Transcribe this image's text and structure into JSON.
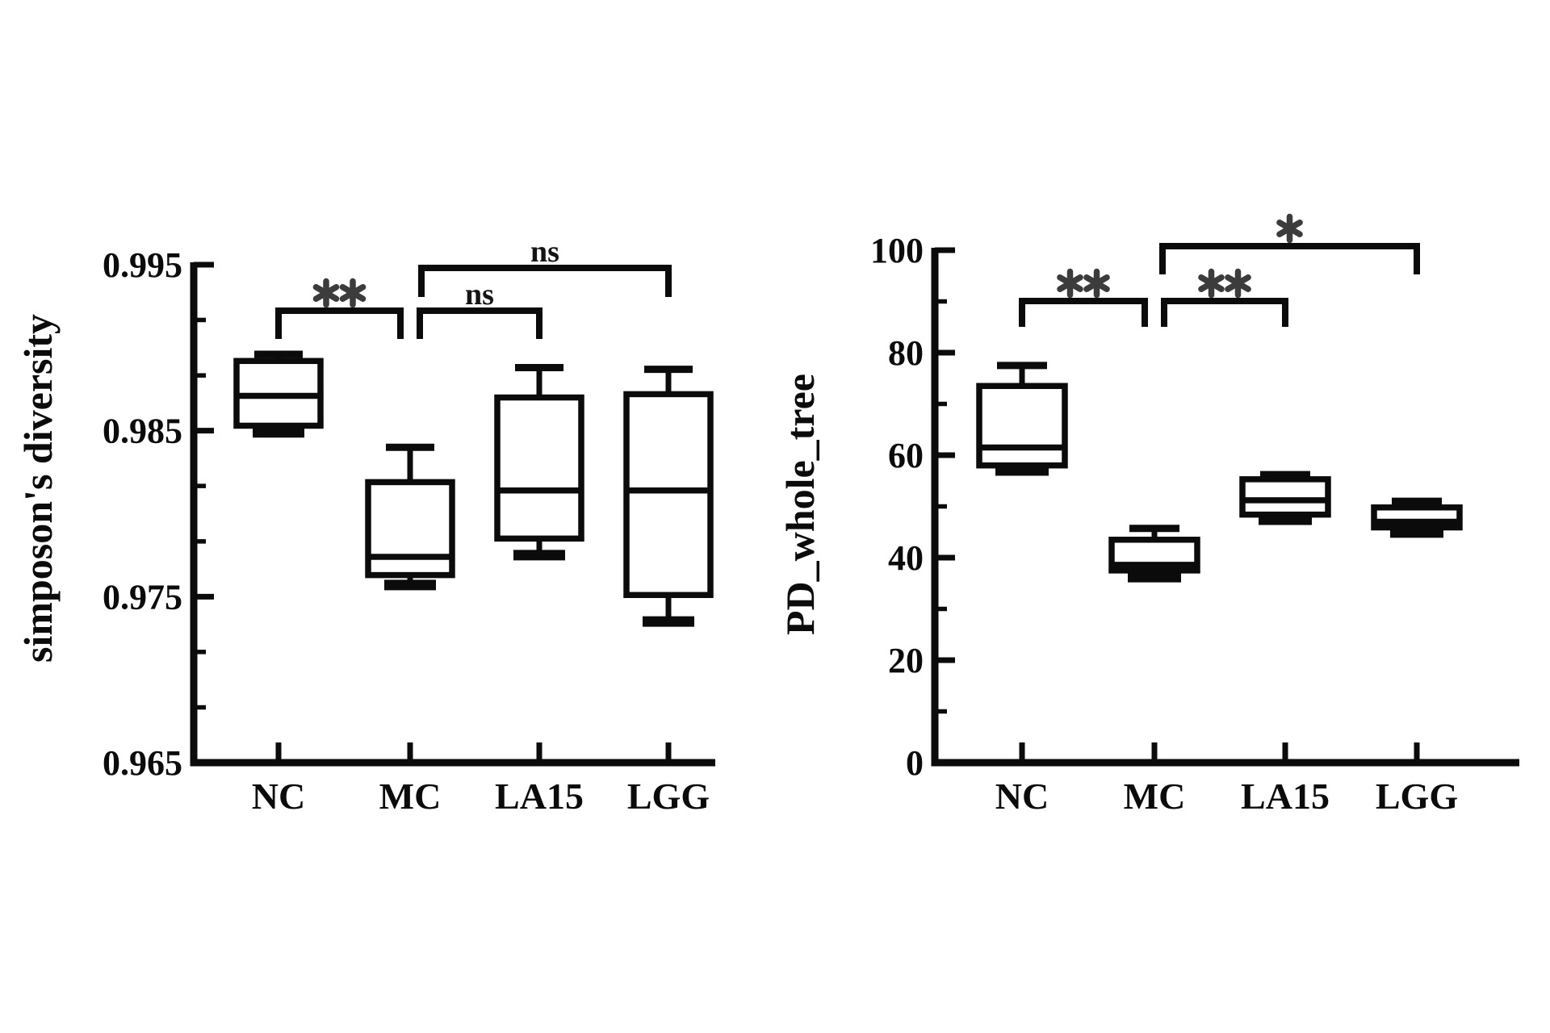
{
  "figure": {
    "background": "#ffffff",
    "ink_color": "#0b0b0b",
    "star_color": "#3c3c3c"
  },
  "chart_data": [
    {
      "type": "box",
      "title": "",
      "ylabel": "simposon's diversity",
      "xlabel": "",
      "categories": [
        "NC",
        "MC",
        "LA15",
        "LGG"
      ],
      "ylim": [
        0.965,
        0.995
      ],
      "grid": false,
      "yticks": [
        {
          "value": 0.965,
          "label": "0.965"
        },
        {
          "value": 0.975,
          "label": "0.975"
        },
        {
          "value": 0.985,
          "label": "0.985"
        },
        {
          "value": 0.995,
          "label": "0.995"
        }
      ],
      "yminor": [
        0.96833,
        0.97167,
        0.97833,
        0.98167,
        0.98833,
        0.99167
      ],
      "boxes": [
        {
          "category": "NC",
          "whisker_low": 0.9849,
          "q1": 0.9853,
          "median": 0.9871,
          "q3": 0.9892,
          "whisker_high": 0.9896
        },
        {
          "category": "MC",
          "whisker_low": 0.9757,
          "q1": 0.9763,
          "median": 0.9774,
          "q3": 0.9819,
          "whisker_high": 0.984
        },
        {
          "category": "LA15",
          "whisker_low": 0.9775,
          "q1": 0.9785,
          "median": 0.9814,
          "q3": 0.987,
          "whisker_high": 0.9888
        },
        {
          "category": "LGG",
          "whisker_low": 0.9735,
          "q1": 0.9751,
          "median": 0.9814,
          "q3": 0.9872,
          "whisker_high": 0.9887
        }
      ],
      "comparisons": [
        {
          "from": "NC",
          "to": "MC",
          "label": "**"
        },
        {
          "from": "MC",
          "to": "LA15",
          "label": "ns"
        },
        {
          "from": "MC",
          "to": "LGG",
          "label": "ns"
        }
      ]
    },
    {
      "type": "box",
      "title": "",
      "ylabel": "PD_whole_tree",
      "xlabel": "",
      "categories": [
        "NC",
        "MC",
        "LA15",
        "LGG"
      ],
      "ylim": [
        0,
        100
      ],
      "grid": false,
      "yticks": [
        {
          "value": 0,
          "label": "0"
        },
        {
          "value": 20,
          "label": "20"
        },
        {
          "value": 40,
          "label": "40"
        },
        {
          "value": 60,
          "label": "60"
        },
        {
          "value": 80,
          "label": "80"
        },
        {
          "value": 100,
          "label": "100"
        }
      ],
      "yminor": [
        10,
        30,
        50,
        70,
        90
      ],
      "boxes": [
        {
          "category": "NC",
          "whisker_low": 57,
          "q1": 58,
          "median": 61.5,
          "q3": 73.5,
          "whisker_high": 77.5
        },
        {
          "category": "MC",
          "whisker_low": 36.2,
          "q1": 37.5,
          "median": 38.6,
          "q3": 43.5,
          "whisker_high": 45.7
        },
        {
          "category": "LA15",
          "whisker_low": 47.4,
          "q1": 48.4,
          "median": 51.2,
          "q3": 55.3,
          "whisker_high": 56.2
        },
        {
          "category": "LGG",
          "whisker_low": 44.9,
          "q1": 45.9,
          "median": 47,
          "q3": 49.8,
          "whisker_high": 51
        }
      ],
      "comparisons": [
        {
          "from": "NC",
          "to": "MC",
          "label": "**"
        },
        {
          "from": "MC",
          "to": "LA15",
          "label": "**"
        },
        {
          "from": "MC",
          "to": "LGG",
          "label": "*"
        }
      ]
    }
  ]
}
